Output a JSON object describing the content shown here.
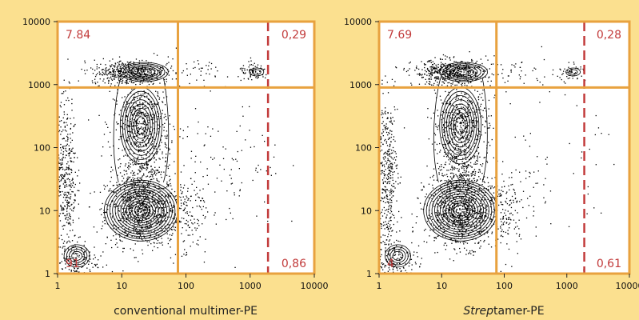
{
  "colors": {
    "background": "#fbe08f",
    "plot_background": "#ffffff",
    "gate_lines": "#e8a23f",
    "threshold_line": "#c23b3b",
    "quadrant_labels": "#c23b3b",
    "dots": "#000000"
  },
  "chart_data": [
    {
      "type": "scatter",
      "subtype": "flow-cytometry contour plot",
      "xlabel": "conventional multimer-PE",
      "xlabel_italic_prefix": "",
      "xlabel_suffix": "conventional multimer-PE",
      "ylabel": "",
      "x_scale": "log",
      "y_scale": "log",
      "xlim": [
        1,
        10000
      ],
      "ylim": [
        1,
        10000
      ],
      "x_ticks": [
        "1",
        "10",
        "100",
        "1000",
        "10000"
      ],
      "y_ticks": [
        "1",
        "10",
        "100",
        "1000",
        "10000"
      ],
      "gates": {
        "vertical_x": 75,
        "horizontal_y": 900,
        "threshold_x": 1900
      },
      "quadrant_labels": {
        "top_left": "7.84",
        "top_right": "0,29",
        "bottom_left": "91",
        "bottom_right": "0,86"
      }
    },
    {
      "type": "scatter",
      "subtype": "flow-cytometry contour plot",
      "xlabel": "Streptamer-PE",
      "xlabel_italic_prefix": "Strep",
      "xlabel_suffix": "tamer-PE",
      "ylabel": "",
      "x_scale": "log",
      "y_scale": "log",
      "xlim": [
        1,
        10000
      ],
      "ylim": [
        1,
        10000
      ],
      "x_ticks": [
        "1",
        "10",
        "100",
        "1000",
        "10000"
      ],
      "y_ticks": [
        "1",
        "10",
        "100",
        "1000",
        "10000"
      ],
      "gates": {
        "vertical_x": 75,
        "horizontal_y": 900,
        "threshold_x": 1900
      },
      "quadrant_labels": {
        "top_left": "7.69",
        "top_right": "0,28",
        "bottom_left": "4",
        "bottom_right": "0,61"
      }
    }
  ]
}
